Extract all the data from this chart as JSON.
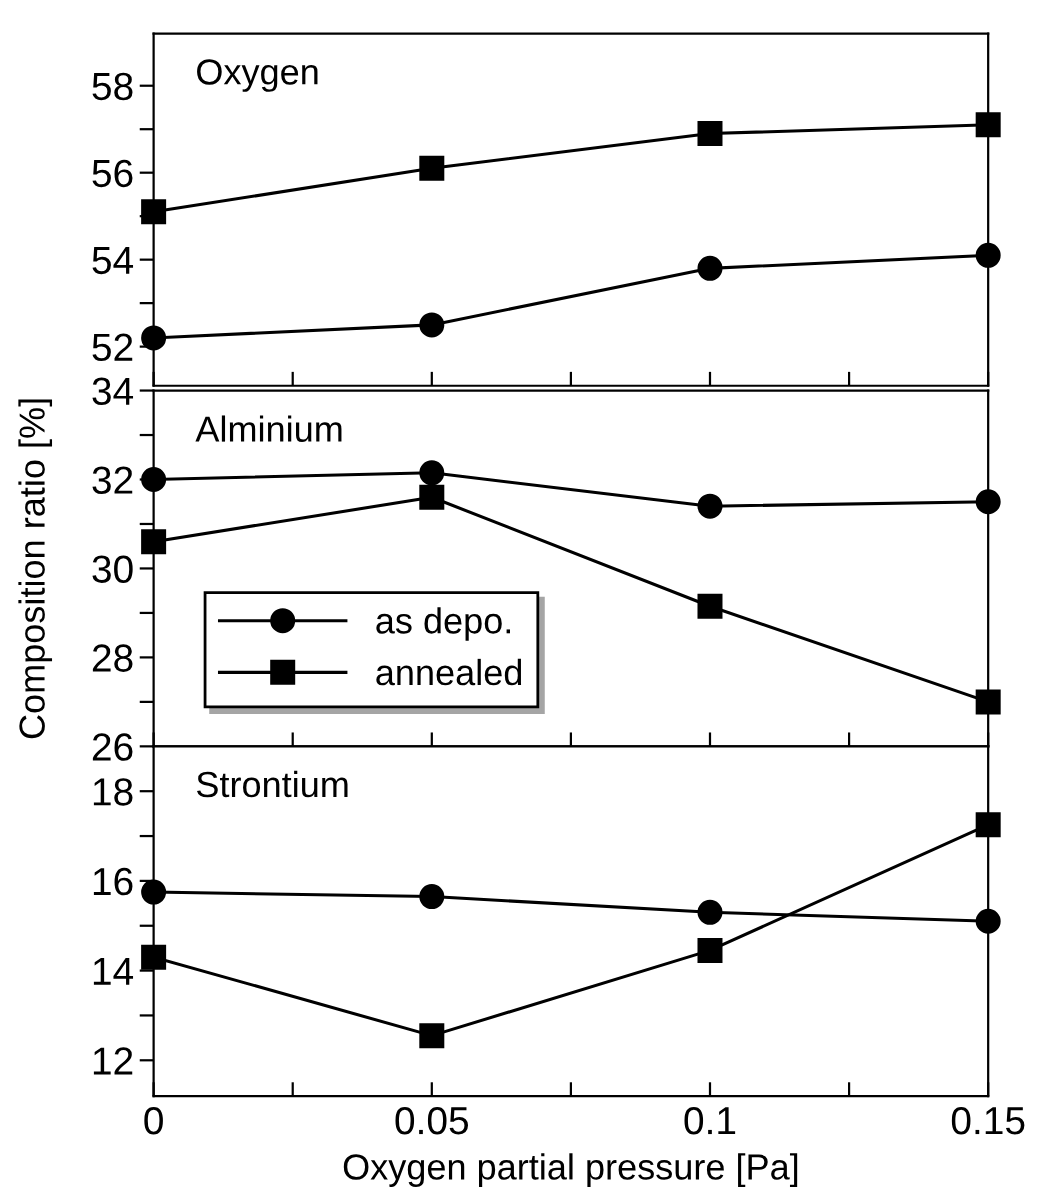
{
  "chart_data": [
    {
      "type": "line",
      "annotations": [
        "Oxygen"
      ],
      "x": [
        0,
        0.05,
        0.1,
        0.15
      ],
      "xlim": [
        0,
        0.15
      ],
      "xticks": [
        {
          "value": 0,
          "label": null
        },
        {
          "value": 0.025,
          "label": null
        },
        {
          "value": 0.05,
          "label": null
        },
        {
          "value": 0.075,
          "label": null
        },
        {
          "value": 0.1,
          "label": null
        },
        {
          "value": 0.125,
          "label": null
        },
        {
          "value": 0.15,
          "label": null
        }
      ],
      "ylim": [
        51.1,
        59.2
      ],
      "yticks": [
        52,
        {
          "value": 53,
          "label": null
        },
        54,
        {
          "value": 55,
          "label": null
        },
        56,
        {
          "value": 57,
          "label": null
        },
        58
      ],
      "tick_labels": "y",
      "grid": false,
      "legend": false,
      "series": [
        {
          "color": "#000000",
          "marker": "circle",
          "values": [
            52.2,
            52.5,
            53.8,
            54.1
          ]
        },
        {
          "color": "#000000",
          "marker": "square",
          "values": [
            55.1,
            56.1,
            56.9,
            57.1
          ]
        }
      ]
    },
    {
      "type": "line",
      "annotations": [
        "Alminium"
      ],
      "ylabel": "Composition ratio [%]",
      "x": [
        0,
        0.05,
        0.1,
        0.15
      ],
      "xlim": [
        0,
        0.15
      ],
      "xticks": [
        {
          "value": 0,
          "label": null
        },
        {
          "value": 0.025,
          "label": null
        },
        {
          "value": 0.05,
          "label": null
        },
        {
          "value": 0.075,
          "label": null
        },
        {
          "value": 0.1,
          "label": null
        },
        {
          "value": 0.125,
          "label": null
        },
        {
          "value": 0.15,
          "label": null
        }
      ],
      "ylim": [
        26,
        34
      ],
      "yticks": [
        26,
        {
          "value": 27,
          "label": null
        },
        28,
        {
          "value": 29,
          "label": null
        },
        30,
        {
          "value": 31,
          "label": null
        },
        32,
        {
          "value": 33,
          "label": null
        },
        34
      ],
      "tick_labels": "y",
      "grid": false,
      "legend": "bottom left",
      "series": [
        {
          "name": "as depo.",
          "color": "#000000",
          "marker": "circle",
          "values": [
            32.0,
            32.15,
            31.4,
            31.5
          ]
        },
        {
          "name": "annealed",
          "color": "#000000",
          "marker": "square",
          "values": [
            30.6,
            31.6,
            29.15,
            27.0
          ]
        }
      ]
    },
    {
      "type": "line",
      "annotations": [
        "Strontium"
      ],
      "xlabel": "Oxygen partial pressure [Pa]",
      "x": [
        0,
        0.05,
        0.1,
        0.15
      ],
      "xlim": [
        0,
        0.15
      ],
      "xticks": [
        0,
        {
          "value": 0.025,
          "label": null
        },
        0.05,
        {
          "value": 0.075,
          "label": null
        },
        0.1,
        {
          "value": 0.125,
          "label": null
        },
        0.15
      ],
      "ylim": [
        11.2,
        19
      ],
      "yticks": [
        12,
        {
          "value": 13,
          "label": null
        },
        14,
        {
          "value": 15,
          "label": null
        },
        16,
        {
          "value": 17,
          "label": null
        },
        18
      ],
      "grid": false,
      "legend": false,
      "series": [
        {
          "color": "#000000",
          "marker": "circle",
          "values": [
            15.75,
            15.65,
            15.3,
            15.1
          ]
        },
        {
          "color": "#000000",
          "marker": "square",
          "values": [
            14.3,
            12.55,
            14.45,
            17.25
          ]
        }
      ]
    }
  ]
}
